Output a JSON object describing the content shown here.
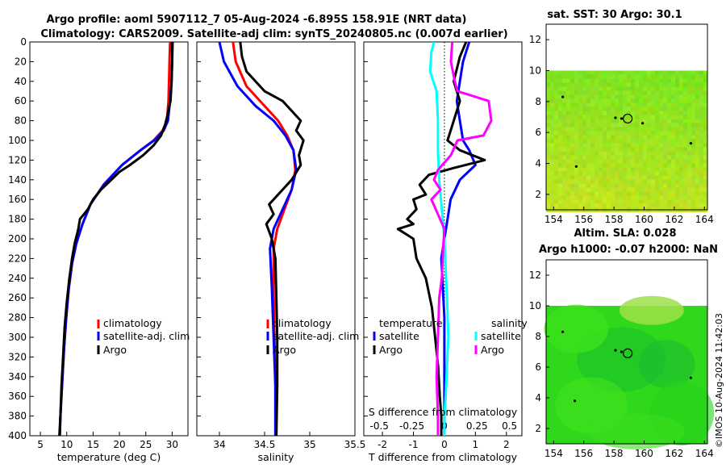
{
  "title": {
    "line1": "Argo profile: aoml 5907112_7 05-Aug-2024 -6.895S 158.91E (NRT data)",
    "line2": "Climatology: CARS2009. Satellite-adj clim: synTS_20240805.nc (0.007d earlier)"
  },
  "copyright": "©IMOS 10-Aug-2024 11:42:03",
  "colors": {
    "argo": "#000000",
    "clim": "#ff0000",
    "sat": "#0000ff",
    "temp_sat": "#00ffff",
    "sal_argo": "#ff00ff"
  },
  "chart_data": [
    {
      "id": "temperature",
      "type": "line",
      "xlabel": "temperature (deg C)",
      "ylabel": "",
      "xlim": [
        3,
        33
      ],
      "ylim": [
        400,
        0
      ],
      "xticks": [
        "5",
        "10",
        "15",
        "20",
        "25",
        "30"
      ],
      "xtick_values": [
        5,
        10,
        15,
        20,
        25,
        30
      ],
      "yticks": [
        "0",
        "20",
        "40",
        "60",
        "80",
        "100",
        "120",
        "140",
        "160",
        "180",
        "200",
        "220",
        "240",
        "260",
        "280",
        "300",
        "320",
        "340",
        "360",
        "380",
        "400"
      ],
      "legend": [
        "climatology",
        "satellite-adj. clim",
        "Argo"
      ],
      "series": [
        {
          "name": "climatology",
          "color": "#ff0000",
          "x": [
            29.6,
            29.5,
            29.4,
            29.3,
            29.0,
            28.2,
            26.5,
            24.0,
            20.5,
            17.0,
            14.5,
            13.0,
            11.8,
            11.0,
            10.4,
            9.9,
            9.5,
            9.2,
            9.0,
            8.8,
            8.7
          ],
          "y": [
            0,
            20,
            40,
            60,
            80,
            90,
            100,
            110,
            125,
            145,
            165,
            185,
            205,
            225,
            250,
            280,
            310,
            340,
            360,
            380,
            400
          ]
        },
        {
          "name": "satellite-adj. clim",
          "color": "#0000ff",
          "x": [
            30.1,
            30.0,
            29.9,
            29.6,
            29.2,
            28.4,
            26.6,
            24.0,
            20.5,
            17.0,
            14.5,
            13.0,
            11.8,
            11.0,
            10.4,
            9.9,
            9.5,
            9.2,
            9.0,
            8.8,
            8.7
          ],
          "y": [
            0,
            20,
            40,
            60,
            80,
            90,
            100,
            110,
            125,
            145,
            165,
            185,
            205,
            225,
            250,
            280,
            310,
            340,
            360,
            380,
            400
          ]
        },
        {
          "name": "Argo",
          "color": "#000000",
          "x": [
            30.0,
            30.0,
            29.9,
            29.7,
            29.1,
            28.6,
            27.9,
            26.5,
            24.5,
            22.0,
            20.0,
            17.5,
            16.5,
            15.0,
            14.0,
            12.5,
            12.2,
            11.5,
            11.0,
            10.5,
            10.0,
            9.6,
            9.3,
            9.0,
            8.8,
            8.6
          ],
          "y": [
            0,
            20,
            40,
            60,
            75,
            85,
            95,
            105,
            115,
            125,
            132,
            145,
            150,
            160,
            170,
            180,
            190,
            205,
            220,
            240,
            265,
            290,
            320,
            350,
            380,
            400
          ]
        }
      ]
    },
    {
      "id": "salinity",
      "type": "line",
      "xlabel": "salinity",
      "xlim": [
        33.75,
        35.5
      ],
      "ylim": [
        400,
        0
      ],
      "xticks": [
        "34",
        "34.5",
        "35",
        "35.5"
      ],
      "xtick_values": [
        34,
        34.5,
        35,
        35.5
      ],
      "legend": [
        "climatology",
        "satellite-adj. clim",
        "Argo"
      ],
      "series": [
        {
          "name": "climatology",
          "color": "#ff0000",
          "x": [
            34.15,
            34.18,
            34.3,
            34.5,
            34.65,
            34.75,
            34.82,
            34.84,
            34.8,
            34.72,
            34.64,
            34.6,
            34.6,
            34.61,
            34.62,
            34.62
          ],
          "y": [
            0,
            20,
            45,
            65,
            80,
            95,
            110,
            130,
            150,
            170,
            190,
            210,
            250,
            300,
            350,
            400
          ]
        },
        {
          "name": "satellite-adj. clim",
          "color": "#0000ff",
          "x": [
            34.0,
            34.05,
            34.2,
            34.4,
            34.6,
            34.73,
            34.82,
            34.85,
            34.8,
            34.7,
            34.6,
            34.56,
            34.58,
            34.6,
            34.62,
            34.62
          ],
          "y": [
            0,
            20,
            45,
            65,
            80,
            95,
            110,
            130,
            150,
            170,
            190,
            210,
            250,
            300,
            350,
            400
          ]
        },
        {
          "name": "Argo",
          "color": "#000000",
          "x": [
            34.23,
            34.25,
            34.3,
            34.5,
            34.7,
            34.8,
            34.9,
            34.85,
            34.93,
            34.88,
            34.9,
            34.8,
            34.7,
            34.55,
            34.6,
            34.52,
            34.58,
            34.62,
            34.63,
            34.64,
            34.64,
            34.63
          ],
          "y": [
            0,
            15,
            30,
            50,
            60,
            70,
            80,
            90,
            100,
            115,
            125,
            140,
            150,
            165,
            175,
            185,
            200,
            220,
            260,
            300,
            350,
            400
          ]
        }
      ]
    },
    {
      "id": "difference",
      "type": "line",
      "xlabel": "T difference from climatology",
      "xlabel_top": "S difference from climatology",
      "xlim": [
        -2.6,
        2.5
      ],
      "ylim": [
        400,
        0
      ],
      "xticks": [
        "-2",
        "-1",
        "0",
        "1",
        "2"
      ],
      "xtick_values": [
        -2,
        -1,
        0,
        1,
        2
      ],
      "xticks_top": [
        "-0.5",
        "-0.25",
        "0",
        "0.25",
        "0.5"
      ],
      "xtick_top_values": [
        -0.5,
        -0.25,
        0,
        0.25,
        0.5
      ],
      "legend_titles": [
        "temperature",
        "salinity"
      ],
      "legend": [
        "satellite",
        "Argo",
        "satellite",
        "Argo"
      ],
      "series": [
        {
          "name": "temperature satellite",
          "color": "#0000ff",
          "axis": "T",
          "x": [
            0.8,
            0.6,
            0.5,
            0.4,
            0.5,
            0.6,
            0.8,
            1.0,
            0.5,
            0.2,
            0.1,
            0.0,
            -0.1,
            -0.05,
            0.0,
            0.0,
            0.0,
            0.0
          ],
          "y": [
            0,
            20,
            40,
            60,
            80,
            100,
            110,
            125,
            140,
            160,
            180,
            200,
            220,
            250,
            280,
            320,
            360,
            400
          ]
        },
        {
          "name": "temperature Argo",
          "color": "#000000",
          "axis": "T",
          "x": [
            0.7,
            0.5,
            0.3,
            0.5,
            0.3,
            0.1,
            0.5,
            0.9,
            1.3,
            0.3,
            -0.5,
            -0.8,
            -0.6,
            -1.0,
            -0.9,
            -1.2,
            -1.0,
            -1.5,
            -1.0,
            -0.9,
            -0.6,
            -0.4,
            -0.3,
            -0.2,
            -0.15,
            -0.1,
            -0.1
          ],
          "y": [
            0,
            15,
            40,
            60,
            80,
            100,
            110,
            115,
            120,
            128,
            135,
            145,
            155,
            160,
            170,
            180,
            185,
            190,
            200,
            220,
            240,
            270,
            300,
            330,
            360,
            380,
            400
          ]
        },
        {
          "name": "salinity satellite",
          "color": "#00ffff",
          "axis": "S",
          "x": [
            -0.08,
            -0.1,
            -0.11,
            -0.06,
            -0.05,
            -0.05,
            -0.04,
            -0.02,
            0.0,
            0.01,
            0.02,
            0.03,
            0.02,
            0.01,
            0.0,
            0.0
          ],
          "y": [
            0,
            10,
            30,
            50,
            80,
            110,
            140,
            170,
            200,
            230,
            260,
            300,
            330,
            360,
            380,
            400
          ]
        },
        {
          "name": "salinity Argo",
          "color": "#ff00ff",
          "axis": "S",
          "x": [
            0.06,
            0.05,
            0.08,
            0.1,
            0.22,
            0.34,
            0.36,
            0.3,
            0.1,
            0.05,
            -0.05,
            -0.08,
            -0.03,
            -0.1,
            -0.05,
            0.0,
            -0.01,
            -0.02,
            -0.04,
            -0.05,
            -0.06,
            -0.05,
            -0.05
          ],
          "y": [
            0,
            20,
            40,
            50,
            55,
            60,
            80,
            95,
            100,
            115,
            130,
            140,
            150,
            160,
            175,
            190,
            210,
            240,
            260,
            300,
            340,
            380,
            400
          ]
        }
      ]
    },
    {
      "id": "sst-map",
      "type": "heatmap",
      "title": "sat. SST: 30 Argo: 30.1",
      "xlim": [
        153.5,
        164.2
      ],
      "ylim": [
        1,
        13
      ],
      "xticks": [
        "154",
        "156",
        "158",
        "160",
        "162",
        "164"
      ],
      "xtick_values": [
        154,
        156,
        158,
        160,
        162,
        164
      ],
      "yticks": [
        "2",
        "4",
        "6",
        "8",
        "10",
        "12"
      ],
      "ytick_values": [
        2,
        4,
        6,
        8,
        10,
        12
      ],
      "data_top": 10,
      "argo_marker": [
        158.91,
        6.9
      ]
    },
    {
      "id": "sla-map",
      "type": "heatmap",
      "title": "Altim. SLA: 0.028",
      "title2": "Argo h1000: -0.07 h2000: NaN",
      "xlim": [
        153.5,
        164.2
      ],
      "ylim": [
        1,
        13
      ],
      "xticks": [
        "154",
        "156",
        "158",
        "160",
        "162",
        "164"
      ],
      "xtick_values": [
        154,
        156,
        158,
        160,
        162,
        164
      ],
      "yticks": [
        "2",
        "4",
        "6",
        "8",
        "10",
        "12"
      ],
      "ytick_values": [
        2,
        4,
        6,
        8,
        10,
        12
      ],
      "data_top": 10,
      "argo_marker": [
        158.91,
        6.9
      ]
    }
  ]
}
